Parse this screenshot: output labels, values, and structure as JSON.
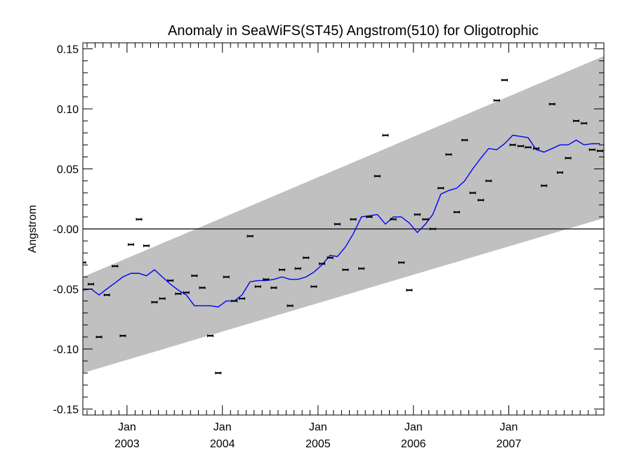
{
  "chart_data": {
    "type": "scatter",
    "title": "Anomaly in SeaWiFS(ST45) Angstrom(510) for Oligotrophic",
    "ylabel": "Angstrom",
    "xlabel": "",
    "xlim": [
      "2002-07-16",
      "2007-12-31"
    ],
    "ylim": [
      -0.155,
      0.155
    ],
    "y_ticks": [
      {
        "value": 0.15,
        "label": "0.15"
      },
      {
        "value": 0.1,
        "label": "0.10"
      },
      {
        "value": 0.05,
        "label": "0.05"
      },
      {
        "value": 0.0,
        "label": "-0.00"
      },
      {
        "value": -0.05,
        "label": "-0.05"
      },
      {
        "value": -0.1,
        "label": "-0.10"
      },
      {
        "value": -0.15,
        "label": "-0.15"
      }
    ],
    "x_ticks": [
      {
        "date": "2003-01-01",
        "month": "Jan",
        "year": "2003"
      },
      {
        "date": "2004-01-01",
        "month": "Jan",
        "year": "2004"
      },
      {
        "date": "2005-01-01",
        "month": "Jan",
        "year": "2005"
      },
      {
        "date": "2006-01-01",
        "month": "Jan",
        "year": "2006"
      },
      {
        "date": "2007-01-01",
        "month": "Jan",
        "year": "2007"
      }
    ],
    "band": {
      "color": "#c0c0c0",
      "start_date": "2002-07-16",
      "end_date": "2007-12-31",
      "upper_start": -0.04,
      "upper_end": 0.144,
      "lower_start": -0.12,
      "lower_end": 0.009
    },
    "zero_line": 0.0,
    "series": [
      {
        "type": "scatter",
        "color": "#000000",
        "points": [
          {
            "x": "2002-07-16",
            "y": -0.028
          },
          {
            "x": "2002-08-16",
            "y": -0.046
          },
          {
            "x": "2002-09-16",
            "y": -0.09
          },
          {
            "x": "2002-10-16",
            "y": -0.055
          },
          {
            "x": "2002-11-16",
            "y": -0.031
          },
          {
            "x": "2002-12-16",
            "y": -0.089
          },
          {
            "x": "2003-01-16",
            "y": -0.013
          },
          {
            "x": "2003-02-16",
            "y": 0.008
          },
          {
            "x": "2003-03-16",
            "y": -0.014
          },
          {
            "x": "2003-04-16",
            "y": -0.061
          },
          {
            "x": "2003-05-16",
            "y": -0.058
          },
          {
            "x": "2003-06-16",
            "y": -0.043
          },
          {
            "x": "2003-07-16",
            "y": -0.054
          },
          {
            "x": "2003-08-16",
            "y": -0.053
          },
          {
            "x": "2003-09-16",
            "y": -0.039
          },
          {
            "x": "2003-10-16",
            "y": -0.049
          },
          {
            "x": "2003-11-16",
            "y": -0.089
          },
          {
            "x": "2003-12-16",
            "y": -0.12
          },
          {
            "x": "2004-01-16",
            "y": -0.04
          },
          {
            "x": "2004-02-16",
            "y": -0.06
          },
          {
            "x": "2004-03-16",
            "y": -0.058
          },
          {
            "x": "2004-04-16",
            "y": -0.006
          },
          {
            "x": "2004-05-16",
            "y": -0.048
          },
          {
            "x": "2004-06-16",
            "y": -0.042
          },
          {
            "x": "2004-07-16",
            "y": -0.049
          },
          {
            "x": "2004-08-16",
            "y": -0.034
          },
          {
            "x": "2004-09-16",
            "y": -0.064
          },
          {
            "x": "2004-10-16",
            "y": -0.033
          },
          {
            "x": "2004-11-16",
            "y": -0.024
          },
          {
            "x": "2004-12-16",
            "y": -0.048
          },
          {
            "x": "2005-01-16",
            "y": -0.029
          },
          {
            "x": "2005-02-16",
            "y": -0.024
          },
          {
            "x": "2005-03-16",
            "y": 0.004
          },
          {
            "x": "2005-04-16",
            "y": -0.034
          },
          {
            "x": "2005-05-16",
            "y": 0.008
          },
          {
            "x": "2005-06-16",
            "y": -0.033
          },
          {
            "x": "2005-07-16",
            "y": 0.01
          },
          {
            "x": "2005-08-16",
            "y": 0.044
          },
          {
            "x": "2005-09-16",
            "y": 0.078
          },
          {
            "x": "2005-10-16",
            "y": 0.008
          },
          {
            "x": "2005-11-16",
            "y": -0.028
          },
          {
            "x": "2005-12-16",
            "y": -0.051
          },
          {
            "x": "2006-01-16",
            "y": 0.012
          },
          {
            "x": "2006-02-16",
            "y": 0.008
          },
          {
            "x": "2006-03-16",
            "y": 0.0
          },
          {
            "x": "2006-04-16",
            "y": 0.034
          },
          {
            "x": "2006-05-16",
            "y": 0.062
          },
          {
            "x": "2006-06-16",
            "y": 0.014
          },
          {
            "x": "2006-07-16",
            "y": 0.074
          },
          {
            "x": "2006-08-16",
            "y": 0.03
          },
          {
            "x": "2006-09-16",
            "y": 0.024
          },
          {
            "x": "2006-10-16",
            "y": 0.04
          },
          {
            "x": "2006-11-16",
            "y": 0.107
          },
          {
            "x": "2006-12-16",
            "y": 0.124
          },
          {
            "x": "2007-01-16",
            "y": 0.07
          },
          {
            "x": "2007-02-16",
            "y": 0.069
          },
          {
            "x": "2007-03-16",
            "y": 0.068
          },
          {
            "x": "2007-04-16",
            "y": 0.067
          },
          {
            "x": "2007-05-16",
            "y": 0.036
          },
          {
            "x": "2007-06-16",
            "y": 0.104
          },
          {
            "x": "2007-07-16",
            "y": 0.047
          },
          {
            "x": "2007-08-16",
            "y": 0.059
          },
          {
            "x": "2007-09-16",
            "y": 0.09
          },
          {
            "x": "2007-10-16",
            "y": 0.088
          },
          {
            "x": "2007-11-16",
            "y": 0.066
          },
          {
            "x": "2007-12-16",
            "y": 0.065
          }
        ]
      },
      {
        "type": "line",
        "color": "#0000ff",
        "points": [
          {
            "x": "2002-07-16",
            "y": -0.051
          },
          {
            "x": "2002-08-16",
            "y": -0.05
          },
          {
            "x": "2002-09-16",
            "y": -0.055
          },
          {
            "x": "2002-10-16",
            "y": -0.05
          },
          {
            "x": "2002-11-16",
            "y": -0.045
          },
          {
            "x": "2002-12-16",
            "y": -0.04
          },
          {
            "x": "2003-01-16",
            "y": -0.037
          },
          {
            "x": "2003-02-16",
            "y": -0.037
          },
          {
            "x": "2003-03-16",
            "y": -0.039
          },
          {
            "x": "2003-04-16",
            "y": -0.034
          },
          {
            "x": "2003-05-16",
            "y": -0.04
          },
          {
            "x": "2003-06-16",
            "y": -0.046
          },
          {
            "x": "2003-07-16",
            "y": -0.051
          },
          {
            "x": "2003-08-16",
            "y": -0.055
          },
          {
            "x": "2003-09-16",
            "y": -0.064
          },
          {
            "x": "2003-10-16",
            "y": -0.064
          },
          {
            "x": "2003-11-16",
            "y": -0.064
          },
          {
            "x": "2003-12-16",
            "y": -0.065
          },
          {
            "x": "2004-01-16",
            "y": -0.06
          },
          {
            "x": "2004-02-16",
            "y": -0.06
          },
          {
            "x": "2004-03-16",
            "y": -0.055
          },
          {
            "x": "2004-04-16",
            "y": -0.044
          },
          {
            "x": "2004-05-16",
            "y": -0.043
          },
          {
            "x": "2004-06-16",
            "y": -0.043
          },
          {
            "x": "2004-07-16",
            "y": -0.042
          },
          {
            "x": "2004-08-16",
            "y": -0.04
          },
          {
            "x": "2004-09-16",
            "y": -0.042
          },
          {
            "x": "2004-10-16",
            "y": -0.042
          },
          {
            "x": "2004-11-16",
            "y": -0.04
          },
          {
            "x": "2004-12-16",
            "y": -0.036
          },
          {
            "x": "2005-01-16",
            "y": -0.03
          },
          {
            "x": "2005-02-16",
            "y": -0.022
          },
          {
            "x": "2005-03-16",
            "y": -0.023
          },
          {
            "x": "2005-04-16",
            "y": -0.015
          },
          {
            "x": "2005-05-16",
            "y": -0.004
          },
          {
            "x": "2005-06-16",
            "y": 0.01
          },
          {
            "x": "2005-07-16",
            "y": 0.011
          },
          {
            "x": "2005-08-16",
            "y": 0.012
          },
          {
            "x": "2005-09-16",
            "y": 0.004
          },
          {
            "x": "2005-10-16",
            "y": 0.01
          },
          {
            "x": "2005-11-16",
            "y": 0.01
          },
          {
            "x": "2005-12-16",
            "y": 0.005
          },
          {
            "x": "2006-01-16",
            "y": -0.003
          },
          {
            "x": "2006-02-16",
            "y": 0.004
          },
          {
            "x": "2006-03-16",
            "y": 0.012
          },
          {
            "x": "2006-04-16",
            "y": 0.029
          },
          {
            "x": "2006-05-16",
            "y": 0.032
          },
          {
            "x": "2006-06-16",
            "y": 0.034
          },
          {
            "x": "2006-07-16",
            "y": 0.04
          },
          {
            "x": "2006-08-16",
            "y": 0.05
          },
          {
            "x": "2006-09-16",
            "y": 0.059
          },
          {
            "x": "2006-10-16",
            "y": 0.067
          },
          {
            "x": "2006-11-16",
            "y": 0.066
          },
          {
            "x": "2006-12-16",
            "y": 0.071
          },
          {
            "x": "2007-01-16",
            "y": 0.078
          },
          {
            "x": "2007-02-16",
            "y": 0.077
          },
          {
            "x": "2007-03-16",
            "y": 0.076
          },
          {
            "x": "2007-04-16",
            "y": 0.066
          },
          {
            "x": "2007-05-16",
            "y": 0.064
          },
          {
            "x": "2007-06-16",
            "y": 0.067
          },
          {
            "x": "2007-07-16",
            "y": 0.07
          },
          {
            "x": "2007-08-16",
            "y": 0.07
          },
          {
            "x": "2007-09-16",
            "y": 0.074
          },
          {
            "x": "2007-10-16",
            "y": 0.07
          },
          {
            "x": "2007-11-16",
            "y": 0.071
          },
          {
            "x": "2007-12-16",
            "y": 0.071
          }
        ]
      }
    ]
  }
}
